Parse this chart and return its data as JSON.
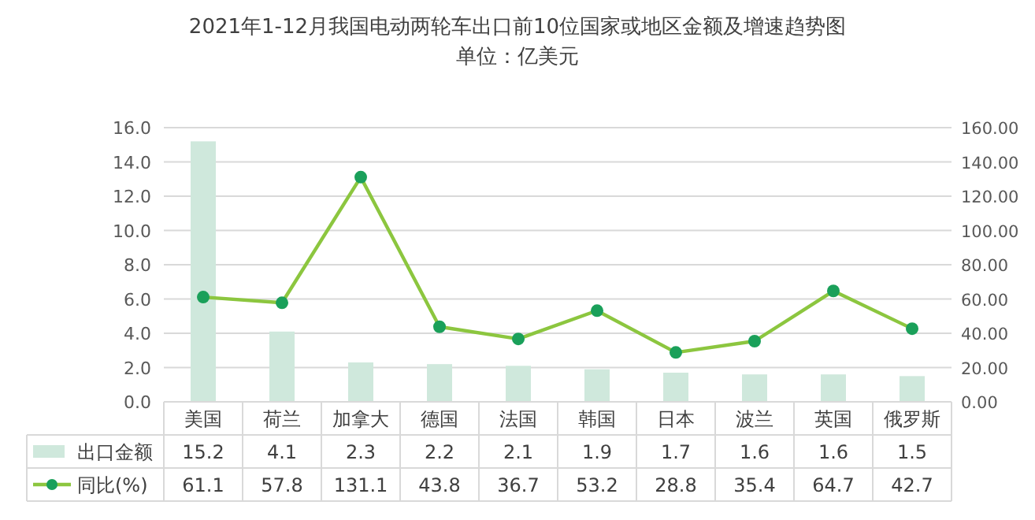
{
  "chart_data": {
    "type": "bar",
    "title": "2021年1-12月我国电动两轮车出口前10位国家或地区金额及增速趋势图",
    "subtitle": "单位：亿美元",
    "categories": [
      "美国",
      "荷兰",
      "加拿大",
      "德国",
      "法国",
      "韩国",
      "日本",
      "波兰",
      "英国",
      "俄罗斯"
    ],
    "series": [
      {
        "name": "出口金额",
        "color": "#cfe8dc",
        "values": [
          15.2,
          4.1,
          2.3,
          2.2,
          2.1,
          1.9,
          1.7,
          1.6,
          1.6,
          1.5
        ]
      },
      {
        "name": "同比(%)",
        "type": "line",
        "axis": "y2",
        "color": "#8cc63f",
        "marker": "circle",
        "values": [
          61.1,
          57.8,
          131.1,
          43.8,
          36.7,
          53.2,
          28.8,
          35.4,
          64.7,
          42.7
        ]
      }
    ],
    "ylim": [
      0,
      16
    ],
    "yticks": [
      {
        "value": 0,
        "label": "0.0"
      },
      {
        "value": 2,
        "label": "2.0"
      },
      {
        "value": 4,
        "label": "4.0"
      },
      {
        "value": 6,
        "label": "6.0"
      },
      {
        "value": 8,
        "label": "8.0"
      },
      {
        "value": 10,
        "label": "10.0"
      },
      {
        "value": 12,
        "label": "12.0"
      },
      {
        "value": 14,
        "label": "14.0"
      },
      {
        "value": 16,
        "label": "16.0"
      }
    ],
    "y2lim": [
      0,
      160
    ],
    "y2ticks": [
      {
        "value": 0,
        "label": "0.00"
      },
      {
        "value": 20,
        "label": "20.00"
      },
      {
        "value": 40,
        "label": "40.00"
      },
      {
        "value": 60,
        "label": "60.00"
      },
      {
        "value": 80,
        "label": "80.00"
      },
      {
        "value": 100,
        "label": "100.00"
      },
      {
        "value": 120,
        "label": "120.00"
      },
      {
        "value": 140,
        "label": "140.00"
      },
      {
        "value": 160,
        "label": "160.00"
      }
    ],
    "grid": "y",
    "data_labels": true,
    "legend": "bottom left"
  }
}
